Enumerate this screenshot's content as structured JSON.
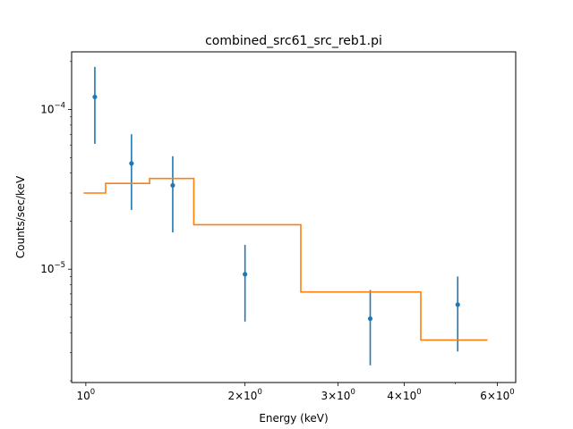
{
  "chart_data": {
    "type": "scatter",
    "title": "combined_src61_src_reb1.pi",
    "xlabel": "Energy (keV)",
    "ylabel": "Counts/sec/keV",
    "xscale": "log",
    "yscale": "log",
    "xlim": [
      0.94,
      6.5
    ],
    "ylim": [
      1.95e-06,
      0.00023
    ],
    "x_ticks": [
      {
        "value": 1,
        "label": "10^0",
        "mantissa": "",
        "base": "10",
        "exp": "0"
      },
      {
        "value": 2,
        "label": "2×10^0",
        "mantissa": "2×",
        "base": "10",
        "exp": "0"
      },
      {
        "value": 3,
        "label": "3×10^0",
        "mantissa": "3×",
        "base": "10",
        "exp": "0"
      },
      {
        "value": 4,
        "label": "4×10^0",
        "mantissa": "4×",
        "base": "10",
        "exp": "0"
      },
      {
        "value": 6,
        "label": "6×10^0",
        "mantissa": "6×",
        "base": "10",
        "exp": "0"
      }
    ],
    "y_ticks": [
      {
        "value": 0.0001,
        "label": "10^-4",
        "base": "10",
        "exp": "−4"
      },
      {
        "value": 1e-05,
        "label": "10^-5",
        "base": "10",
        "exp": "−5"
      }
    ],
    "series": [
      {
        "kind": "errorbar",
        "color": "#1f77b4",
        "points": [
          {
            "x": 1.04,
            "y": 0.00012,
            "ylo": 6.1e-05,
            "yhi": 0.000185
          },
          {
            "x": 1.22,
            "y": 4.6e-05,
            "ylo": 2.35e-05,
            "yhi": 7e-05
          },
          {
            "x": 1.46,
            "y": 3.35e-05,
            "ylo": 1.7e-05,
            "yhi": 5.1e-05
          },
          {
            "x": 2.0,
            "y": 9.3e-06,
            "ylo": 4.7e-06,
            "yhi": 1.42e-05
          },
          {
            "x": 3.45,
            "y": 4.9e-06,
            "ylo": 2.5e-06,
            "yhi": 7.4e-06
          },
          {
            "x": 5.05,
            "y": 6e-06,
            "ylo": 3.05e-06,
            "yhi": 9e-06
          }
        ]
      },
      {
        "kind": "step",
        "color": "#ff7f0e",
        "steps": [
          {
            "x0": 0.99,
            "x1": 1.09,
            "y": 3e-05
          },
          {
            "x0": 1.09,
            "x1": 1.32,
            "y": 3.45e-05
          },
          {
            "x0": 1.32,
            "x1": 1.6,
            "y": 3.7e-05
          },
          {
            "x0": 1.6,
            "x1": 2.55,
            "y": 1.9e-05
          },
          {
            "x0": 2.55,
            "x1": 4.3,
            "y": 7.2e-06
          },
          {
            "x0": 4.3,
            "x1": 5.75,
            "y": 3.6e-06
          }
        ]
      }
    ],
    "grid": false,
    "legend": "none"
  }
}
